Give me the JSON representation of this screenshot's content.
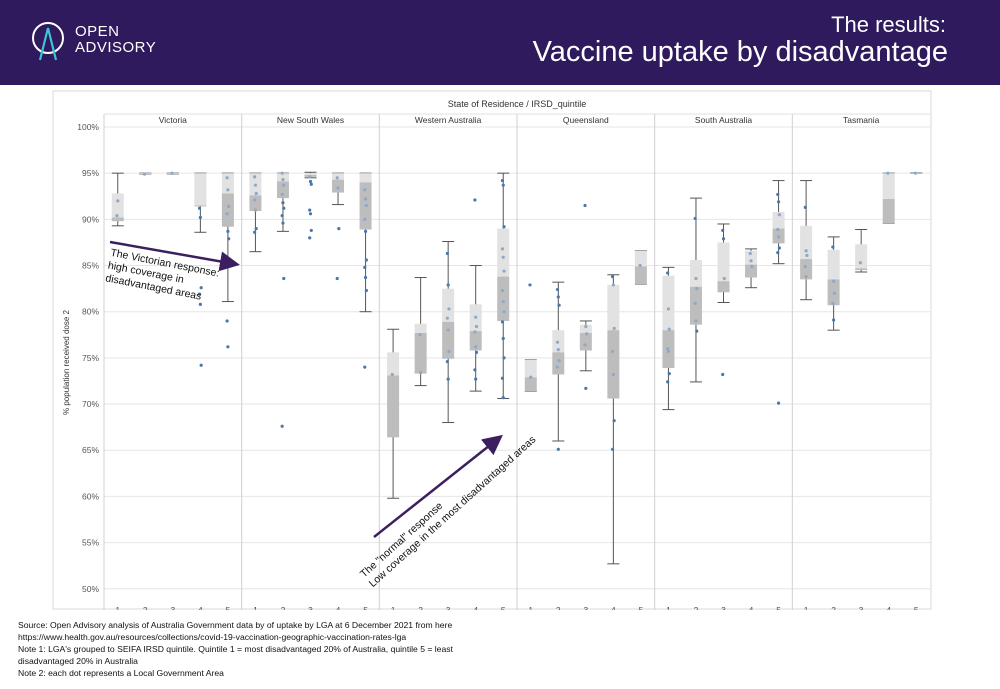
{
  "header": {
    "logo_line1": "OPEN",
    "logo_line2": "ADVISORY",
    "subtitle": "The results:",
    "title": "Vaccine uptake by disadvantage"
  },
  "chart_data": {
    "type": "boxplot",
    "title": "State of Residence / IRSD_quintile",
    "ylabel": "% population received dose 2",
    "ylim": [
      49,
      100
    ],
    "yticks": [
      "50%",
      "55%",
      "60%",
      "65%",
      "70%",
      "75%",
      "80%",
      "85%",
      "90%",
      "95%",
      "100%"
    ],
    "quintile_labels": [
      "1",
      "2",
      "3",
      "4",
      "5"
    ],
    "colors": {
      "box_light": "#e2e2e2",
      "box_dark": "#bdbdbd",
      "point": "#4a78a8",
      "arrow": "#3b1f5e",
      "grid": "#e6e6e6"
    },
    "panels": [
      {
        "state": "Victoria",
        "boxes": [
          {
            "quintile": "1",
            "min": 89.3,
            "q1": 89.8,
            "median": 90.2,
            "q3": 92.8,
            "max": 95.0,
            "points": [
              90.4,
              92.0
            ]
          },
          {
            "quintile": "2",
            "min": 94.9,
            "q1": 94.9,
            "median": 94.9,
            "q3": 95.0,
            "max": 95.0,
            "points": [
              94.9
            ]
          },
          {
            "quintile": "3",
            "min": 94.9,
            "q1": 94.9,
            "median": 94.9,
            "q3": 95.0,
            "max": 95.0,
            "points": [
              95.0
            ]
          },
          {
            "quintile": "4",
            "min": 88.6,
            "q1": 91.4,
            "median": 91.5,
            "q3": 95.0,
            "max": 95.0,
            "points": [
              91.2,
              90.2,
              82.6,
              81.9,
              80.8,
              74.2
            ]
          },
          {
            "quintile": "5",
            "min": 81.1,
            "q1": 89.2,
            "median": 92.8,
            "q3": 95.0,
            "max": 95.0,
            "points": [
              94.5,
              93.2,
              91.4,
              90.6,
              88.7,
              87.9,
              79.0,
              76.2
            ]
          }
        ]
      },
      {
        "state": "New South Wales",
        "boxes": [
          {
            "quintile": "1",
            "min": 86.5,
            "q1": 90.9,
            "median": 92.6,
            "q3": 95.0,
            "max": 95.0,
            "points": [
              94.6,
              93.7,
              92.8,
              92.1,
              91.0,
              89.0,
              88.6
            ]
          },
          {
            "quintile": "2",
            "min": 88.7,
            "q1": 92.3,
            "median": 94.1,
            "q3": 95.0,
            "max": 95.0,
            "points": [
              95.0,
              94.3,
              93.7,
              92.7,
              91.8,
              91.2,
              90.4,
              89.6,
              83.6,
              67.6
            ]
          },
          {
            "quintile": "3",
            "min": 94.5,
            "q1": 94.6,
            "median": 94.8,
            "q3": 95.0,
            "max": 95.1,
            "points": [
              94.6,
              94.1,
              93.8,
              91.0,
              90.6,
              88.8,
              88.0
            ]
          },
          {
            "quintile": "4",
            "min": 91.6,
            "q1": 92.9,
            "median": 94.3,
            "q3": 95.0,
            "max": 95.0,
            "points": [
              94.5,
              93.4,
              89.0,
              83.6
            ]
          },
          {
            "quintile": "5",
            "min": 80.0,
            "q1": 88.9,
            "median": 94.0,
            "q3": 95.0,
            "max": 95.0,
            "points": [
              93.2,
              92.2,
              91.5,
              90.0,
              88.7,
              85.6,
              84.8,
              83.7,
              82.3,
              74.0
            ]
          }
        ]
      },
      {
        "state": "Western Australia",
        "boxes": [
          {
            "quintile": "1",
            "min": 59.8,
            "q1": 66.4,
            "median": 73.1,
            "q3": 75.6,
            "max": 78.1,
            "points": [
              73.2
            ]
          },
          {
            "quintile": "2",
            "min": 72.0,
            "q1": 73.3,
            "median": 77.7,
            "q3": 78.7,
            "max": 83.7,
            "points": [
              77.5,
              73.4
            ]
          },
          {
            "quintile": "3",
            "min": 68.0,
            "q1": 74.9,
            "median": 78.9,
            "q3": 82.5,
            "max": 87.6,
            "points": [
              86.3,
              82.9,
              80.3,
              79.3,
              78.0,
              75.7,
              74.6,
              72.7
            ]
          },
          {
            "quintile": "4",
            "min": 71.4,
            "q1": 75.8,
            "median": 77.9,
            "q3": 80.8,
            "max": 85.0,
            "points": [
              92.1,
              79.4,
              78.4,
              77.8,
              76.2,
              75.6,
              73.7,
              72.7
            ]
          },
          {
            "quintile": "5",
            "min": 70.6,
            "q1": 79.0,
            "median": 83.8,
            "q3": 89.0,
            "max": 95.0,
            "points": [
              94.2,
              93.7,
              89.2,
              86.8,
              85.9,
              84.4,
              82.3,
              81.1,
              80.0,
              78.9,
              77.1,
              75.0,
              72.8,
              70.7
            ]
          }
        ]
      },
      {
        "state": "Queensland",
        "boxes": [
          {
            "quintile": "1",
            "min": 71.4,
            "q1": 71.4,
            "median": 72.9,
            "q3": 74.8,
            "max": 74.8,
            "points": [
              82.9,
              72.9
            ]
          },
          {
            "quintile": "2",
            "min": 66.0,
            "q1": 73.2,
            "median": 75.6,
            "q3": 78.0,
            "max": 83.2,
            "points": [
              82.4,
              81.6,
              80.7,
              76.7,
              75.9,
              74.7,
              74.0,
              65.1
            ]
          },
          {
            "quintile": "3",
            "min": 73.6,
            "q1": 75.8,
            "median": 77.7,
            "q3": 78.6,
            "max": 79.0,
            "points": [
              91.5,
              78.4,
              77.6,
              76.4,
              71.7
            ]
          },
          {
            "quintile": "4",
            "min": 52.7,
            "q1": 70.6,
            "median": 78.0,
            "q3": 82.9,
            "max": 84.0,
            "points": [
              83.8,
              82.9,
              78.2,
              75.7,
              73.2,
              68.2,
              65.1
            ]
          },
          {
            "quintile": "5",
            "min": 83.0,
            "q1": 83.0,
            "median": 84.9,
            "q3": 86.6,
            "max": 86.6,
            "points": [
              85.0
            ]
          }
        ]
      },
      {
        "state": "South Australia",
        "boxes": [
          {
            "quintile": "1",
            "min": 69.4,
            "q1": 73.9,
            "median": 78.0,
            "q3": 83.9,
            "max": 84.8,
            "points": [
              84.2,
              80.3,
              78.1,
              76.0,
              75.7,
              73.3,
              72.4
            ]
          },
          {
            "quintile": "2",
            "min": 72.4,
            "q1": 78.6,
            "median": 82.7,
            "q3": 85.6,
            "max": 92.3,
            "points": [
              90.1,
              83.6,
              82.5,
              80.9,
              79.0,
              77.9
            ]
          },
          {
            "quintile": "3",
            "min": 81.0,
            "q1": 82.1,
            "median": 83.3,
            "q3": 87.5,
            "max": 89.5,
            "points": [
              88.8,
              87.9,
              83.6,
              73.2
            ]
          },
          {
            "quintile": "4",
            "min": 82.6,
            "q1": 83.7,
            "median": 85.1,
            "q3": 86.6,
            "max": 86.8,
            "points": [
              86.3,
              85.5,
              84.9
            ]
          },
          {
            "quintile": "5",
            "min": 85.2,
            "q1": 87.4,
            "median": 89.0,
            "q3": 90.8,
            "max": 94.2,
            "points": [
              92.7,
              91.9,
              90.5,
              88.9,
              88.1,
              86.9,
              86.4,
              70.1
            ]
          }
        ]
      },
      {
        "state": "Tasmania",
        "boxes": [
          {
            "quintile": "1",
            "min": 81.3,
            "q1": 83.5,
            "median": 85.7,
            "q3": 89.3,
            "max": 94.2,
            "points": [
              91.3,
              86.6,
              86.1,
              84.9,
              83.8
            ]
          },
          {
            "quintile": "2",
            "min": 78.0,
            "q1": 80.7,
            "median": 83.5,
            "q3": 86.7,
            "max": 88.1,
            "points": [
              87.0,
              83.3,
              82.0,
              80.9,
              79.1
            ]
          },
          {
            "quintile": "3",
            "min": 84.3,
            "q1": 84.5,
            "median": 84.7,
            "q3": 87.3,
            "max": 88.9,
            "points": [
              85.3
            ]
          },
          {
            "quintile": "4",
            "min": 89.6,
            "q1": 89.6,
            "median": 92.2,
            "q3": 95.0,
            "max": 95.0,
            "points": [
              95.0
            ]
          },
          {
            "quintile": "5",
            "min": 95.0,
            "q1": 95.0,
            "median": 95.0,
            "q3": 95.0,
            "max": 95.0,
            "points": [
              95.0
            ]
          }
        ]
      }
    ],
    "annotations": [
      {
        "lines": [
          "The Victorian response:",
          "high coverage in",
          "disadvantaged areas"
        ]
      },
      {
        "lines": [
          "The \"normal\" response",
          "Low coverage in the most disadvantaged areas"
        ]
      }
    ]
  },
  "footer": {
    "line1": "Source: Open Advisory analysis of Australia Government data by of uptake by LGA at 6 December 2021 from here",
    "line2": "https://www.health.gov.au/resources/collections/covid-19-vaccination-geographic-vaccination-rates-lga",
    "line3": "Note 1: LGA's grouped to SEIFA IRSD quintile. Quintile 1 = most disadvantaged 20% of Australia, quintile 5 = least",
    "line4": "disadvantaged 20% in Australia",
    "line5": "Note 2: each dot represents a Local Government Area"
  }
}
